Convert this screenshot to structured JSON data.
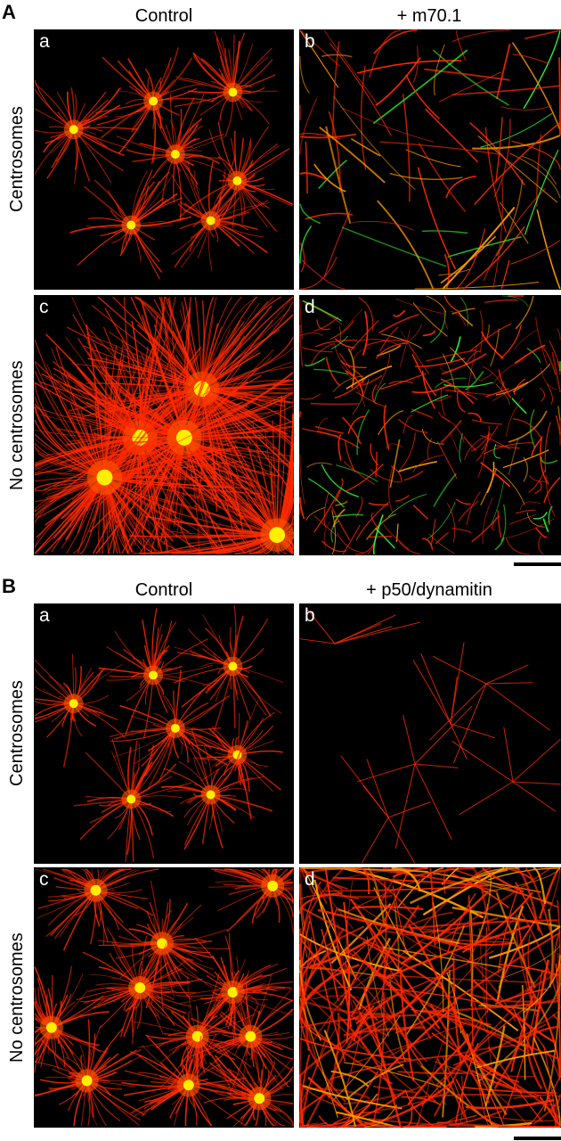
{
  "figure": {
    "sections": [
      {
        "label": "A",
        "columns": [
          "Control",
          "+ m70.1"
        ],
        "rows": [
          "Centrosomes",
          "No centrosomes"
        ],
        "panels": [
          {
            "letter": "a",
            "pattern": "asters-sparse"
          },
          {
            "letter": "b",
            "pattern": "tangled-filaments"
          },
          {
            "letter": "c",
            "pattern": "asters-dense"
          },
          {
            "letter": "d",
            "pattern": "short-filaments-green"
          }
        ],
        "scale_bar": true
      },
      {
        "label": "B",
        "columns": [
          "Control",
          "+ p50/dynamitin"
        ],
        "rows": [
          "Centrosomes",
          "No centrosomes"
        ],
        "panels": [
          {
            "letter": "a",
            "pattern": "asters-sparse"
          },
          {
            "letter": "b",
            "pattern": "stars-faint"
          },
          {
            "letter": "c",
            "pattern": "asters-many"
          },
          {
            "letter": "d",
            "pattern": "bundled-mesh"
          }
        ],
        "scale_bar": true
      }
    ],
    "colors": {
      "microtubule": "#ff2a00",
      "centrosome": "#ffee00",
      "green_channel": "#33ff33",
      "background": "#000000"
    }
  }
}
